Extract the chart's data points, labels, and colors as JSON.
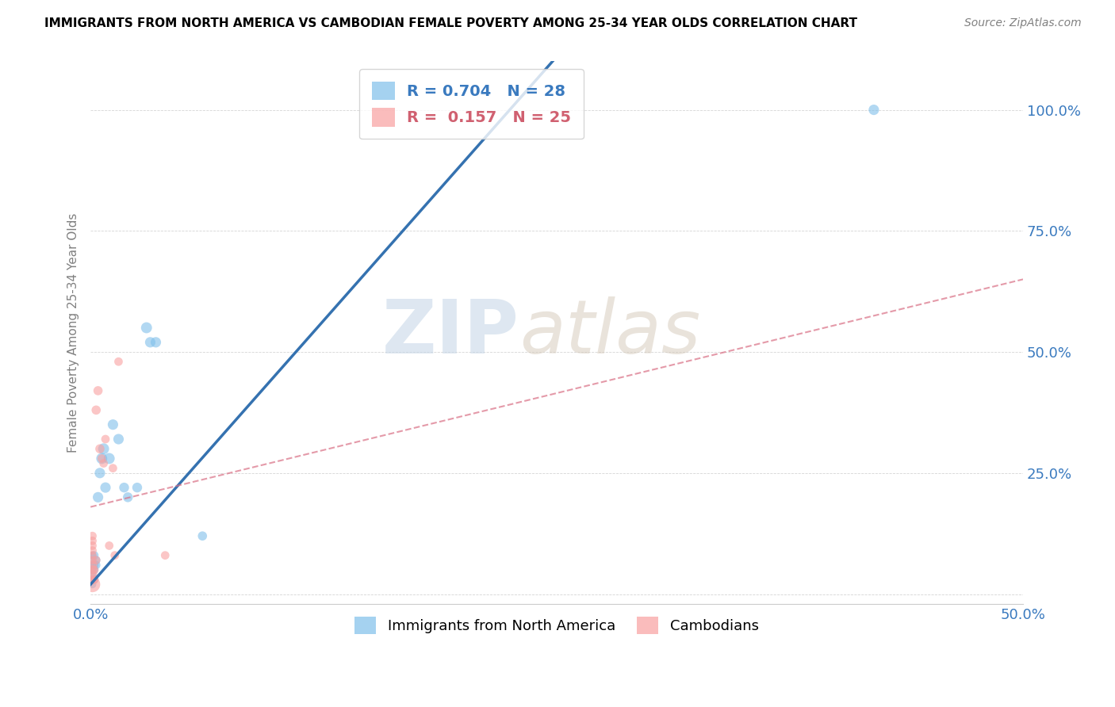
{
  "title": "IMMIGRANTS FROM NORTH AMERICA VS CAMBODIAN FEMALE POVERTY AMONG 25-34 YEAR OLDS CORRELATION CHART",
  "source": "Source: ZipAtlas.com",
  "ylabel": "Female Poverty Among 25-34 Year Olds",
  "xlim": [
    0.0,
    0.5
  ],
  "ylim": [
    -0.02,
    1.1
  ],
  "xtick_positions": [
    0.0,
    0.125,
    0.25,
    0.375,
    0.5
  ],
  "xtick_labels": [
    "0.0%",
    "",
    "",
    "",
    "50.0%"
  ],
  "ytick_positions": [
    0.0,
    0.25,
    0.5,
    0.75,
    1.0
  ],
  "ytick_labels": [
    "",
    "25.0%",
    "50.0%",
    "75.0%",
    "100.0%"
  ],
  "legend_blue_label": "Immigrants from North America",
  "legend_pink_label": "Cambodians",
  "R_blue": 0.704,
  "N_blue": 28,
  "R_pink": 0.157,
  "N_pink": 25,
  "blue_color": "#7fbfea",
  "pink_color": "#f9a0a0",
  "blue_line_color": "#3572b0",
  "pink_line_color": "#d97085",
  "watermark_zip": "ZIP",
  "watermark_atlas": "atlas",
  "blue_points": [
    [
      0.001,
      0.02
    ],
    [
      0.001,
      0.04
    ],
    [
      0.001,
      0.05
    ],
    [
      0.001,
      0.06
    ],
    [
      0.001,
      0.07
    ],
    [
      0.001,
      0.08
    ],
    [
      0.002,
      0.03
    ],
    [
      0.002,
      0.05
    ],
    [
      0.002,
      0.06
    ],
    [
      0.002,
      0.08
    ],
    [
      0.003,
      0.06
    ],
    [
      0.003,
      0.07
    ],
    [
      0.004,
      0.2
    ],
    [
      0.005,
      0.25
    ],
    [
      0.006,
      0.28
    ],
    [
      0.007,
      0.3
    ],
    [
      0.008,
      0.22
    ],
    [
      0.01,
      0.28
    ],
    [
      0.012,
      0.35
    ],
    [
      0.015,
      0.32
    ],
    [
      0.018,
      0.22
    ],
    [
      0.02,
      0.2
    ],
    [
      0.025,
      0.22
    ],
    [
      0.03,
      0.55
    ],
    [
      0.032,
      0.52
    ],
    [
      0.035,
      0.52
    ],
    [
      0.06,
      0.12
    ],
    [
      0.42,
      1.0
    ]
  ],
  "blue_sizes": [
    50,
    50,
    50,
    50,
    50,
    50,
    60,
    60,
    60,
    60,
    60,
    60,
    90,
    90,
    100,
    100,
    90,
    100,
    90,
    90,
    80,
    80,
    80,
    100,
    90,
    90,
    70,
    90
  ],
  "pink_points": [
    [
      0.001,
      0.02
    ],
    [
      0.001,
      0.03
    ],
    [
      0.001,
      0.04
    ],
    [
      0.001,
      0.05
    ],
    [
      0.001,
      0.06
    ],
    [
      0.001,
      0.07
    ],
    [
      0.001,
      0.08
    ],
    [
      0.001,
      0.09
    ],
    [
      0.001,
      0.1
    ],
    [
      0.001,
      0.11
    ],
    [
      0.001,
      0.12
    ],
    [
      0.002,
      0.03
    ],
    [
      0.002,
      0.05
    ],
    [
      0.003,
      0.07
    ],
    [
      0.003,
      0.38
    ],
    [
      0.004,
      0.42
    ],
    [
      0.005,
      0.3
    ],
    [
      0.006,
      0.28
    ],
    [
      0.007,
      0.27
    ],
    [
      0.008,
      0.32
    ],
    [
      0.01,
      0.1
    ],
    [
      0.012,
      0.26
    ],
    [
      0.013,
      0.08
    ],
    [
      0.015,
      0.48
    ],
    [
      0.04,
      0.08
    ]
  ],
  "pink_sizes": [
    200,
    80,
    80,
    80,
    80,
    60,
    60,
    60,
    60,
    60,
    60,
    60,
    60,
    60,
    70,
    70,
    70,
    60,
    60,
    60,
    60,
    60,
    60,
    60,
    60
  ],
  "blue_line_x": [
    0.0,
    0.5
  ],
  "blue_line_y": [
    0.02,
    2.2
  ],
  "pink_line_x": [
    0.0,
    0.5
  ],
  "pink_line_y": [
    0.18,
    0.65
  ]
}
